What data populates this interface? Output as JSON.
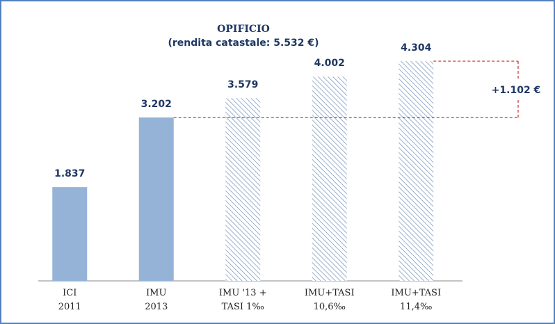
{
  "chart_data": {
    "type": "bar",
    "title": "OPIFICIO",
    "subtitle": "(rendita catastale: 5.532  €)",
    "categories": [
      "ICI\n2011",
      "IMU\n2013",
      "IMU '13 +\nTASI 1‰",
      "IMU+TASI\n10,6‰",
      "IMU+TASI\n11,4‰"
    ],
    "values": [
      1837,
      3202,
      3579,
      4002,
      4304
    ],
    "value_labels": [
      "1.837",
      "3.202",
      "3.579",
      "4.002",
      "4.304"
    ],
    "colors": [
      "#95b3d7",
      "#95b3d7",
      "#95b3d7",
      "#95b3d7",
      "#95b3d7"
    ],
    "hatched": [
      false,
      false,
      true,
      true,
      true
    ],
    "annotation": "+1.102 €"
  }
}
